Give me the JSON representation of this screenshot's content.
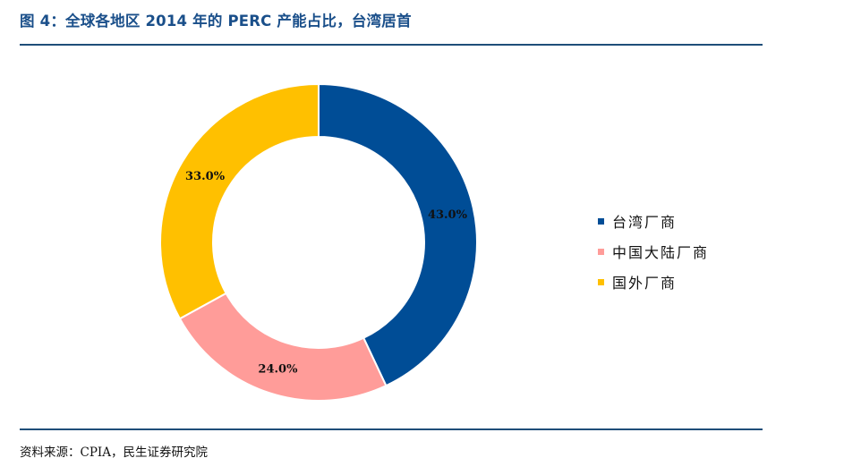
{
  "header": {
    "title": "图 4：全球各地区 2014 年的 PERC 产能占比，台湾居首"
  },
  "footer": {
    "source": "资料来源：CPIA，民生证券研究院"
  },
  "chart_data": {
    "type": "pie",
    "variant": "donut",
    "categories": [
      "台湾厂商",
      "中国大陆厂商",
      "国外厂商"
    ],
    "values": [
      43.0,
      24.0,
      33.0
    ],
    "data_labels": [
      "43.0%",
      "24.0%",
      "33.0%"
    ],
    "colors": [
      "#004d96",
      "#ff9c99",
      "#ffc000"
    ],
    "legend_position": "right"
  }
}
